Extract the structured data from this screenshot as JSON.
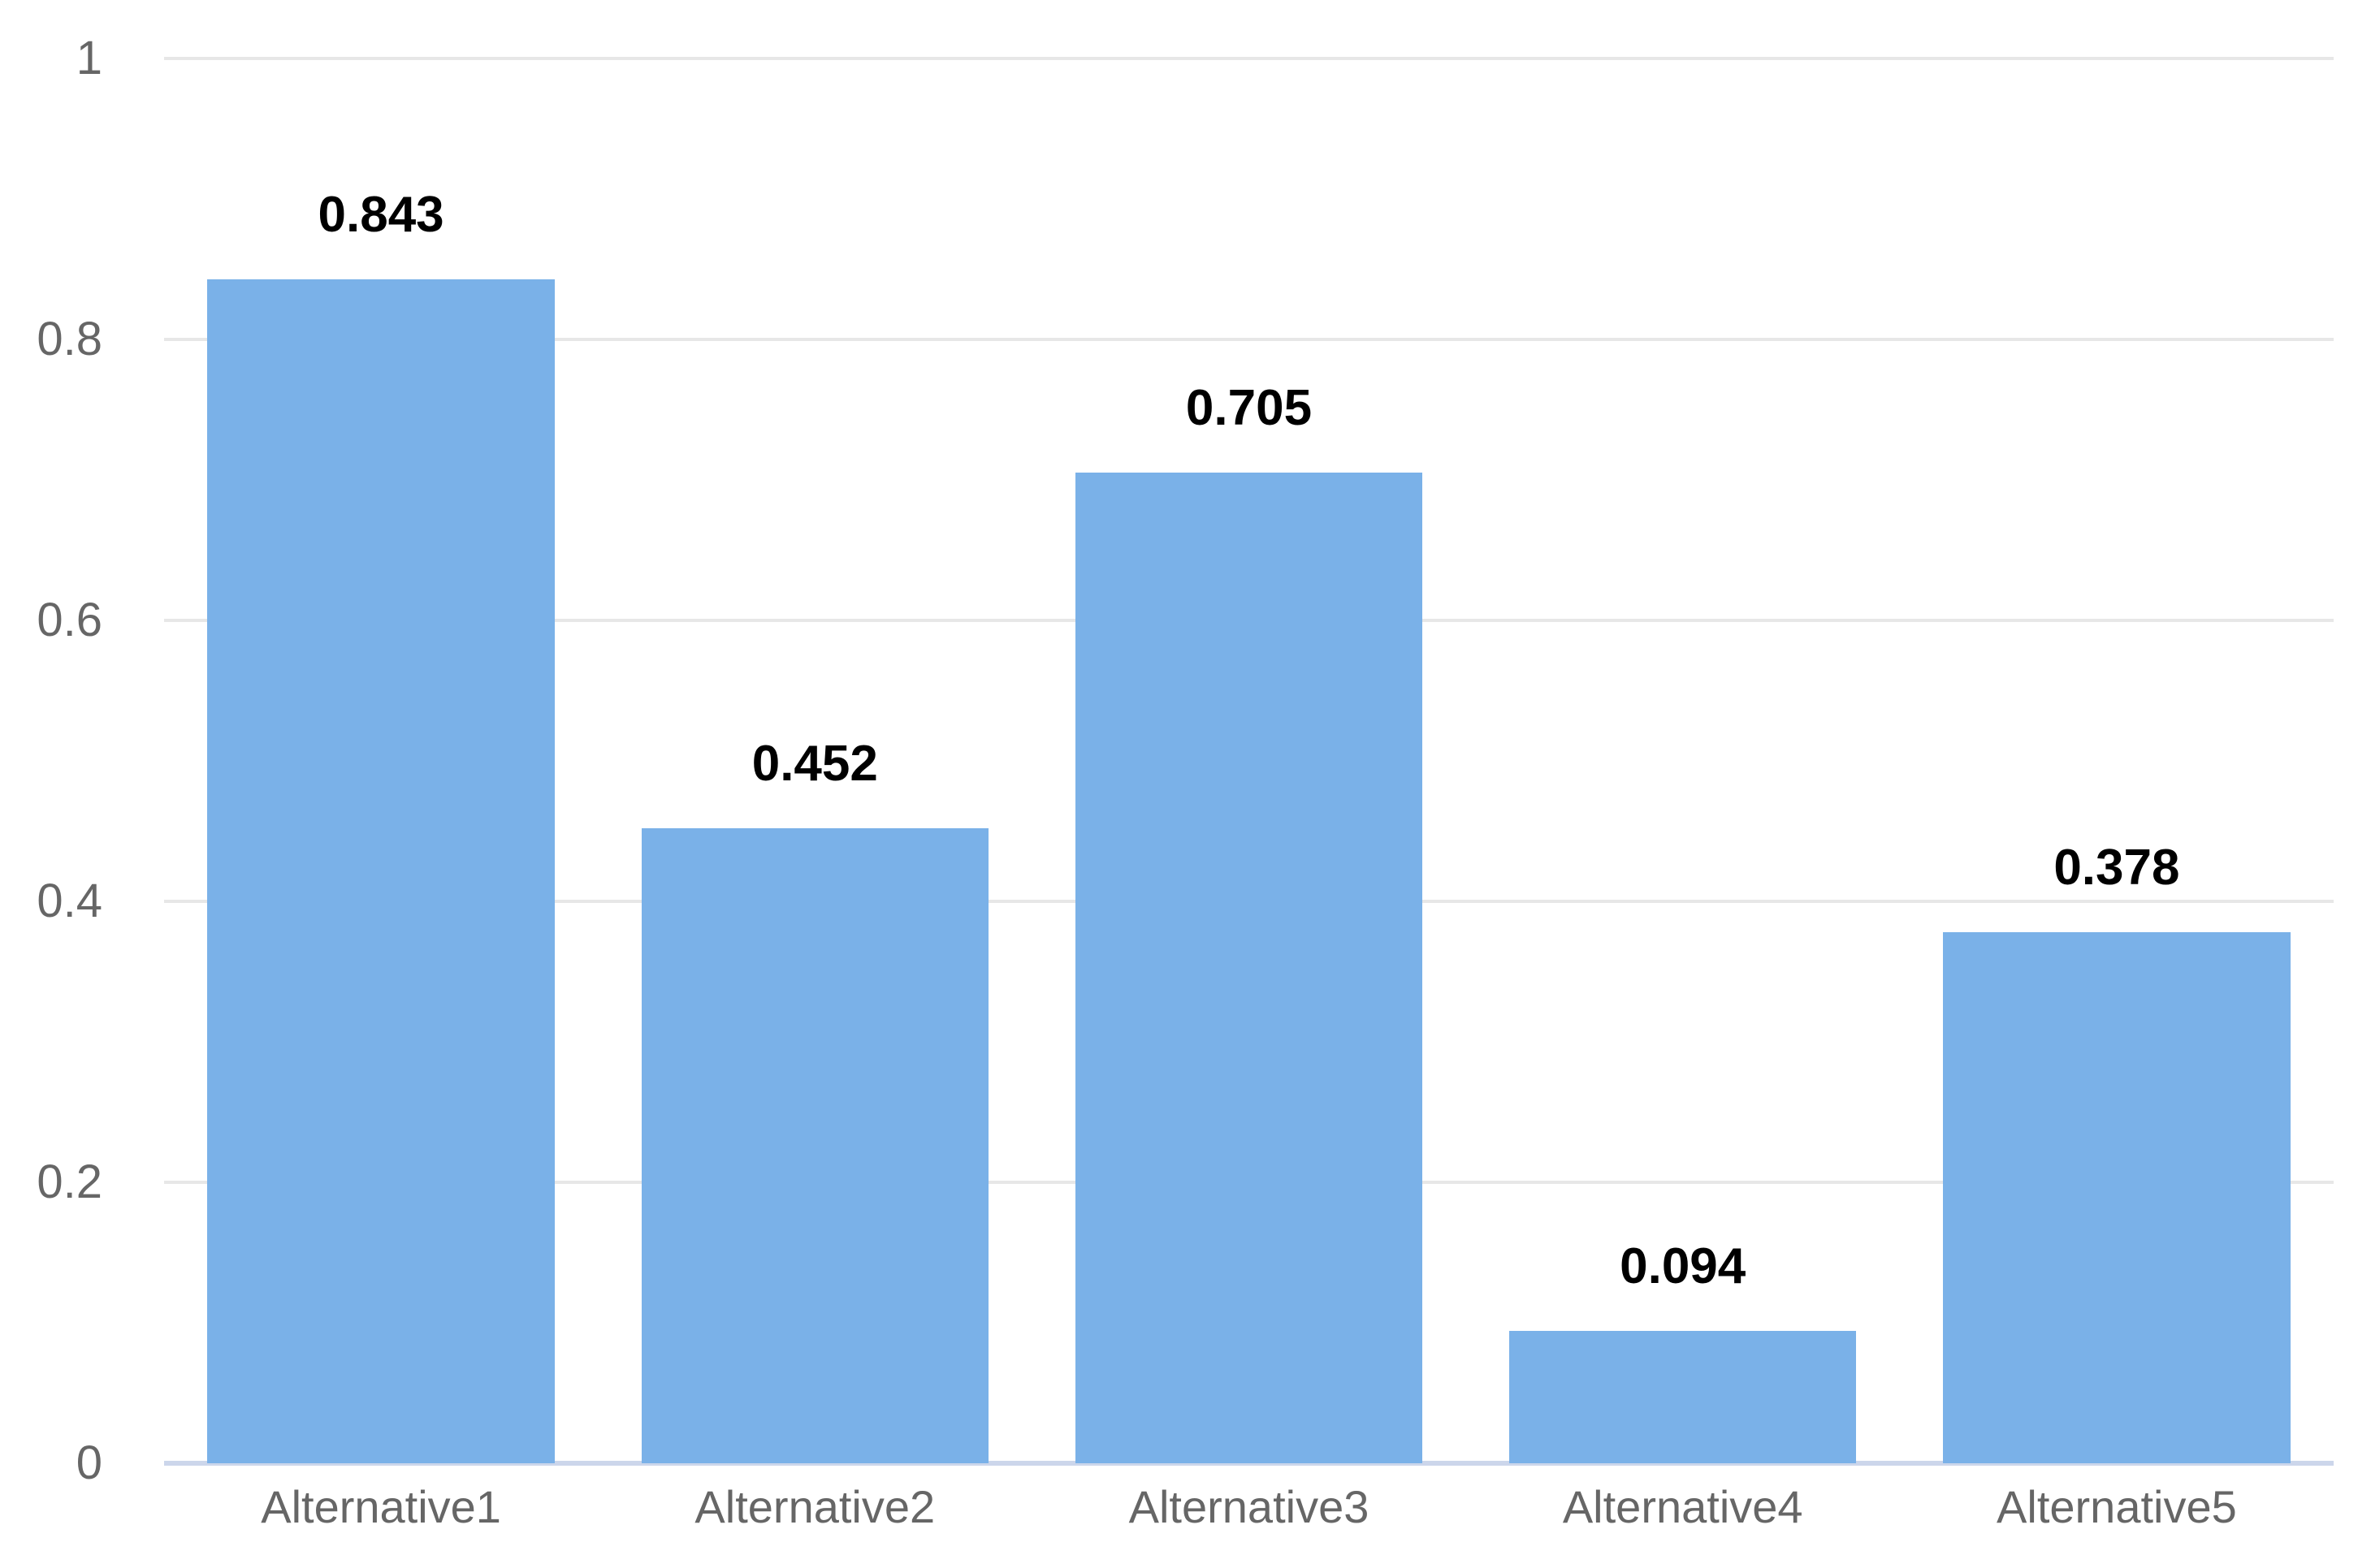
{
  "chart_data": {
    "type": "bar",
    "title": "",
    "xlabel": "",
    "ylabel": "",
    "categories": [
      "Alternative1",
      "Alternative2",
      "Alternative3",
      "Alternative4",
      "Alternative5"
    ],
    "values": [
      0.843,
      0.452,
      0.705,
      0.094,
      0.378
    ],
    "value_labels": [
      "0.843",
      "0.452",
      "0.705",
      "0.094",
      "0.378"
    ],
    "series_name": "",
    "ylim": [
      0,
      1
    ],
    "yticks": [
      {
        "value": 0,
        "label": "0"
      },
      {
        "value": 0.2,
        "label": "0.2"
      },
      {
        "value": 0.4,
        "label": "0.4"
      },
      {
        "value": 0.6,
        "label": "0.6"
      },
      {
        "value": 0.8,
        "label": "0.8"
      },
      {
        "value": 1,
        "label": "1"
      }
    ],
    "grid": true,
    "legend": false,
    "colors": {
      "bar": "#7ab1e8",
      "gridline": "#e7e7e7",
      "axis_line": "#ccd6eb",
      "tick_label": "#666666",
      "category_label": "#666666",
      "value_label": "#000000",
      "background": "#ffffff"
    }
  }
}
